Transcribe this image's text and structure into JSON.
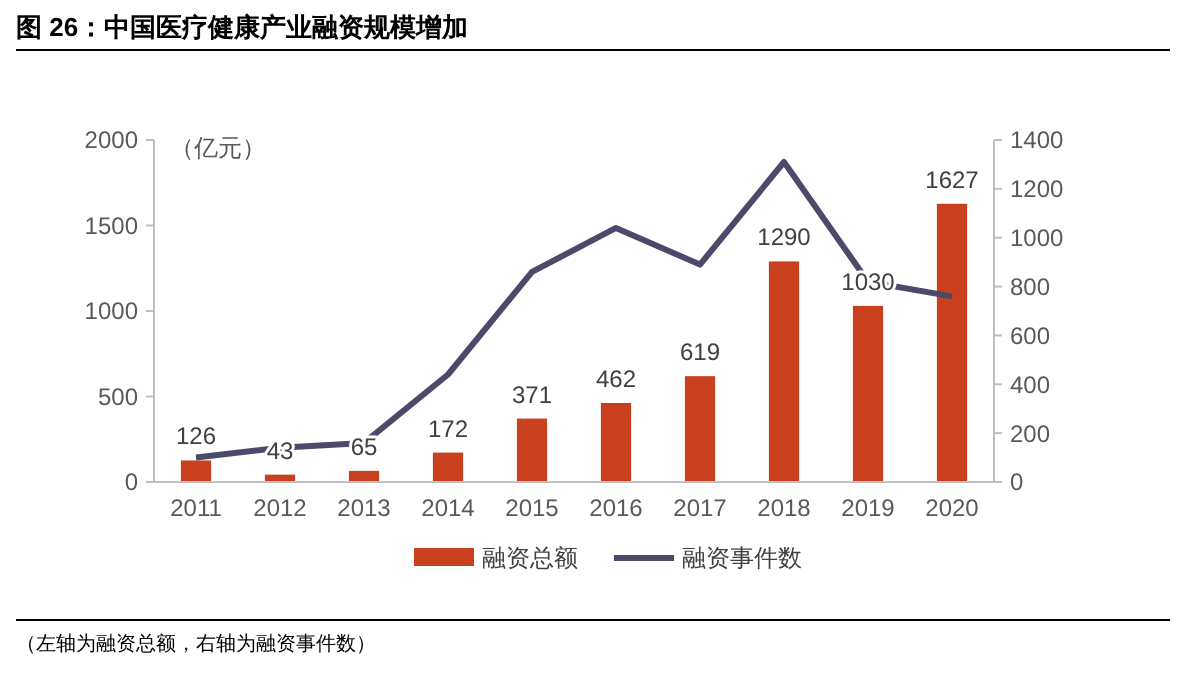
{
  "chart_data": {
    "type": "bar",
    "title": "图 26：中国医疗健康产业融资规模增加",
    "ylabel": "（亿元）",
    "categories": [
      "2011",
      "2012",
      "2013",
      "2014",
      "2015",
      "2016",
      "2017",
      "2018",
      "2019",
      "2020"
    ],
    "series": [
      {
        "name": "融资总额",
        "color": "#c9401f",
        "values": [
          126,
          43,
          65,
          172,
          371,
          462,
          619,
          1290,
          1030,
          1627
        ],
        "value_labels": [
          "126",
          "43",
          "65",
          "172",
          "371",
          "462",
          "619",
          "1290",
          "1030",
          "1627"
        ]
      },
      {
        "name": "融资事件数",
        "type": "line",
        "axis": "y2",
        "color": "#4b4a6b",
        "values": [
          100,
          140,
          160,
          440,
          860,
          1040,
          890,
          1310,
          820,
          760
        ]
      }
    ],
    "ylim": [
      0,
      2000
    ],
    "yticks": [
      0,
      500,
      1000,
      1500,
      2000
    ],
    "y2lim": [
      0,
      1400
    ],
    "y2ticks": [
      0,
      200,
      400,
      600,
      800,
      1000,
      1200,
      1400
    ],
    "grid": false,
    "legend": "bottom",
    "marker": "none",
    "line_style": "solid",
    "annotations": [
      "（左轴为融资总额，右轴为融资事件数）"
    ]
  }
}
